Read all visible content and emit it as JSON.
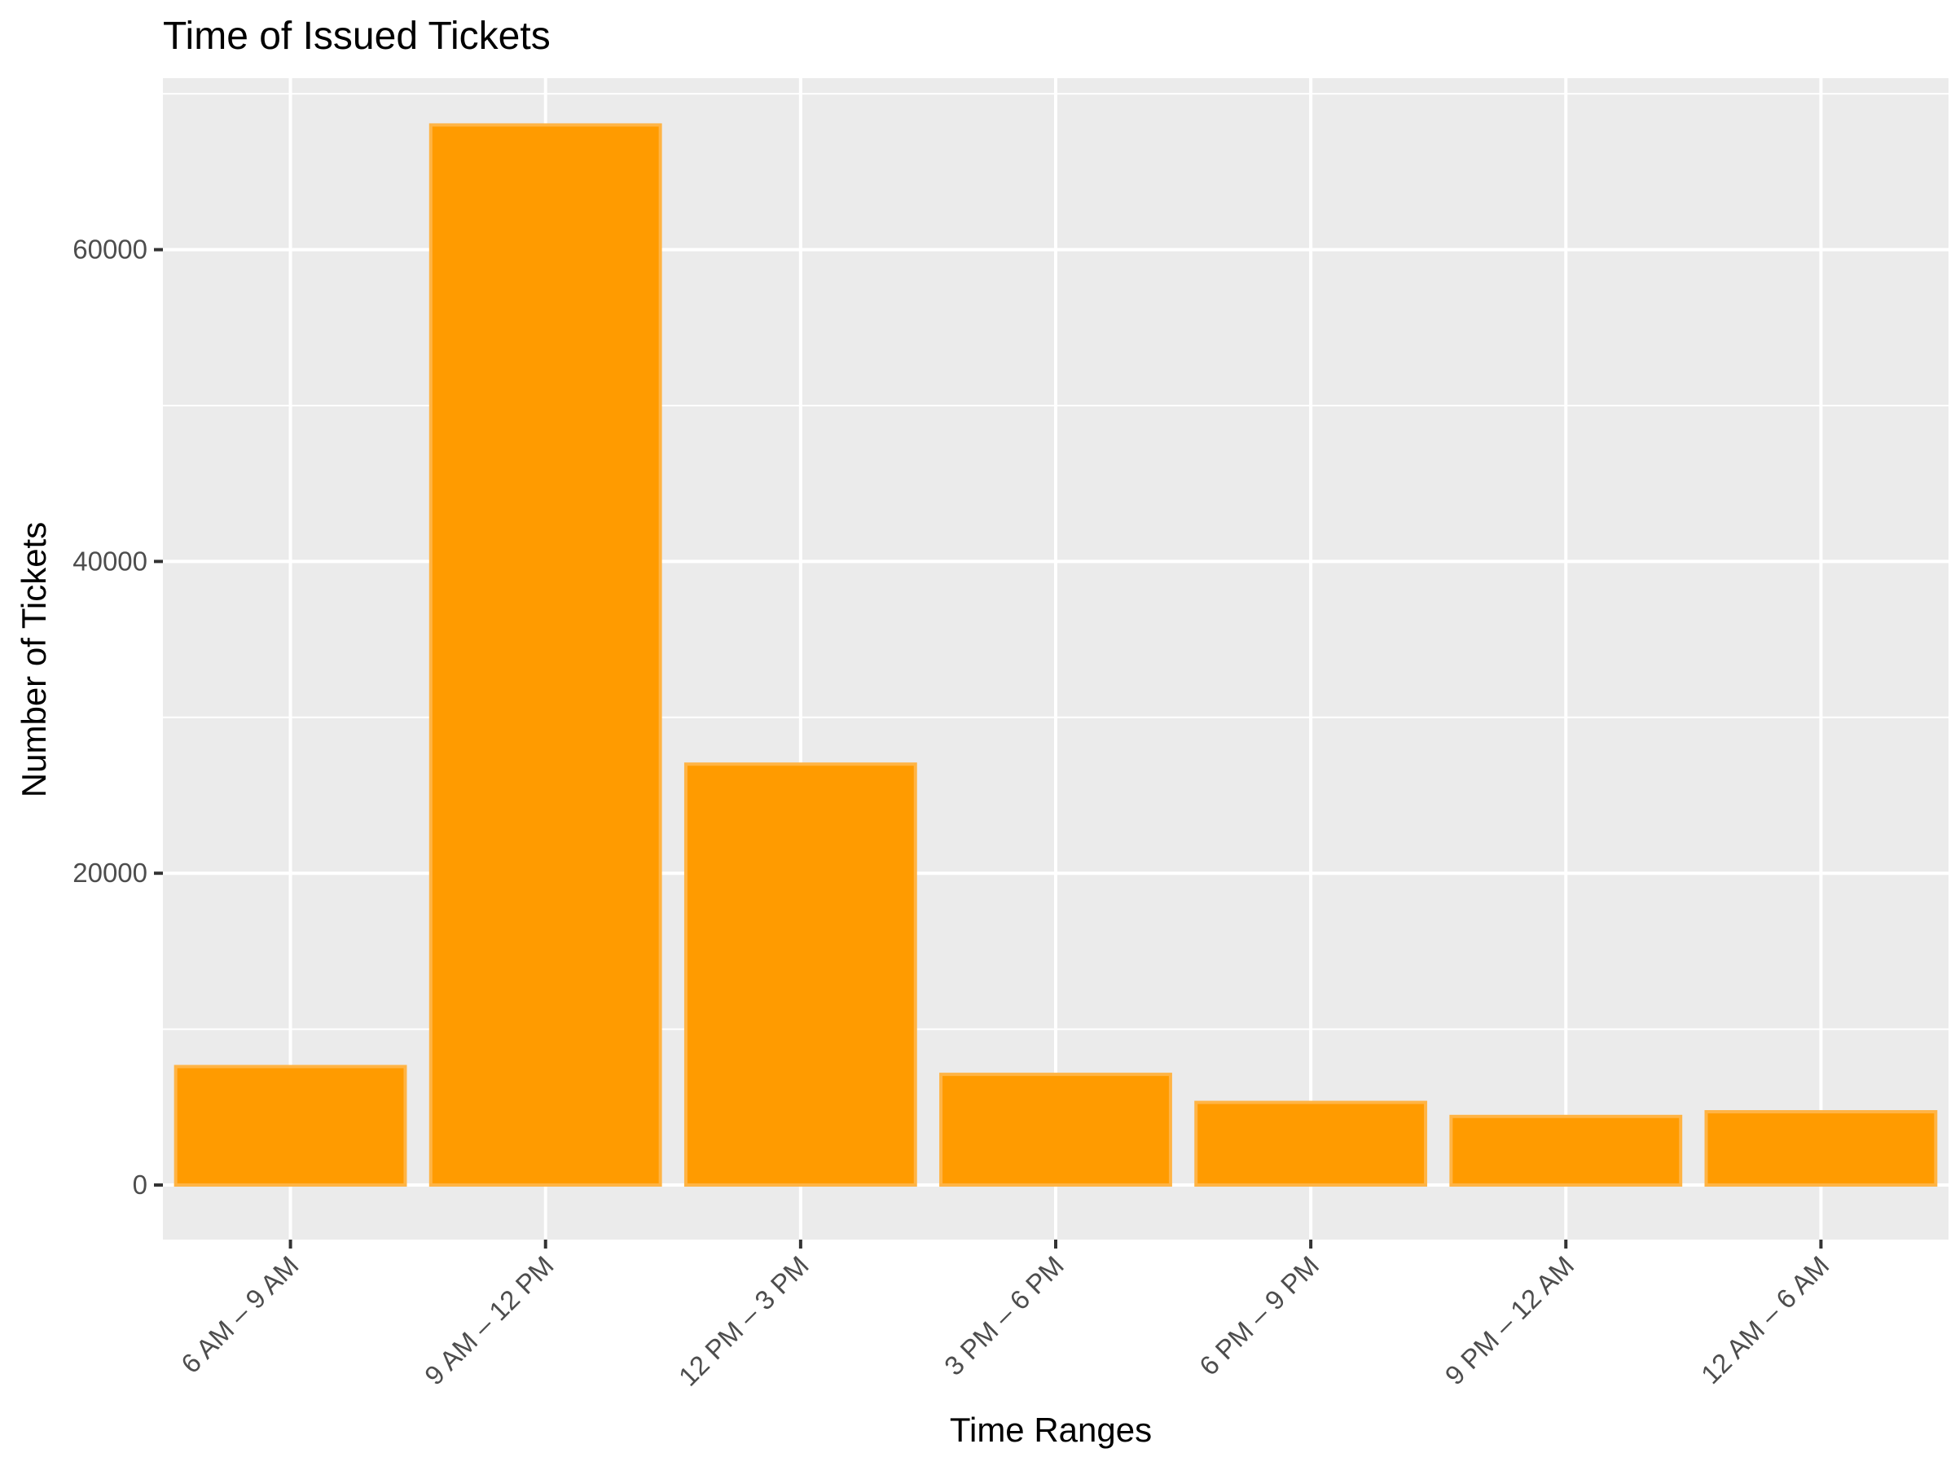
{
  "chart_data": {
    "type": "bar",
    "title": "Time of Issued Tickets",
    "xlabel": "Time Ranges",
    "ylabel": "Number of Tickets",
    "categories": [
      "6 AM – 9 AM",
      "9 AM – 12 PM",
      "12 PM – 3 PM",
      "3 PM – 6 PM",
      "6 PM – 9 PM",
      "9 PM – 12 AM",
      "12 AM – 6 AM"
    ],
    "values": [
      7600,
      68000,
      27000,
      7100,
      5300,
      4400,
      4700
    ],
    "yticks": [
      0,
      20000,
      40000,
      60000
    ],
    "ylim": [
      -3500,
      71000
    ],
    "grid": true,
    "legend": "none",
    "colors": {
      "bar_fill": "#ff9b00",
      "bar_stroke": "#ffb445",
      "panel_bg": "#ebebeb",
      "grid": "#ffffff",
      "tick": "#333333"
    }
  }
}
